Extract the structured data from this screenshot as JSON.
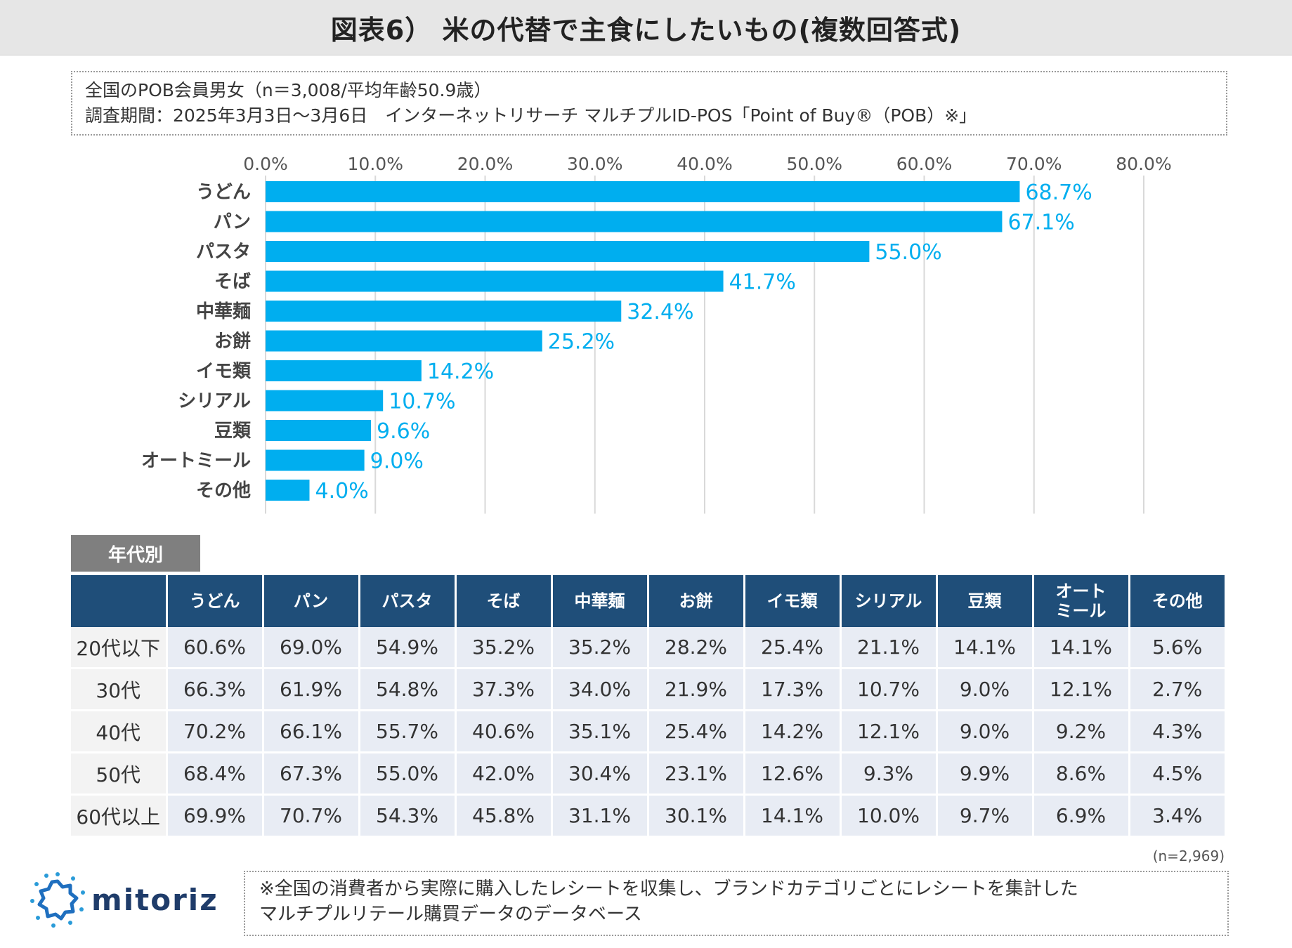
{
  "title": "図表6） 米の代替で主食にしたいもの(複数回答式)",
  "survey": {
    "line1": "全国のPOB会員男女（n＝3,008/平均年齢50.9歳）",
    "line2": "調査期間：2025年3月3日～3月6日　インターネットリサーチ マルチプルID-POS「Point of Buy®（POB）※」"
  },
  "colors": {
    "bar": "#00aeef",
    "label": "#00aeef",
    "header": "#1f4e79",
    "grid": "#d9d9d9"
  },
  "chart_data": {
    "type": "bar",
    "orientation": "horizontal",
    "title": "米の代替で主食にしたいもの(複数回答式)",
    "categories": [
      "うどん",
      "パン",
      "パスタ",
      "そば",
      "中華麺",
      "お餅",
      "イモ類",
      "シリアル",
      "豆類",
      "オートミール",
      "その他"
    ],
    "values": [
      68.7,
      67.1,
      55.0,
      41.7,
      32.4,
      25.2,
      14.2,
      10.7,
      9.6,
      9.0,
      4.0
    ],
    "data_labels": [
      "68.7%",
      "67.1%",
      "55.0%",
      "41.7%",
      "32.4%",
      "25.2%",
      "14.2%",
      "10.7%",
      "9.6%",
      "9.0%",
      "4.0%"
    ],
    "x_ticks": [
      0,
      10,
      20,
      30,
      40,
      50,
      60,
      70,
      80
    ],
    "x_tick_labels": [
      "0.0%",
      "10.0%",
      "20.0%",
      "30.0%",
      "40.0%",
      "50.0%",
      "60.0%",
      "70.0%",
      "80.0%"
    ],
    "xlim": [
      0,
      80
    ],
    "grid": true,
    "xlabel": "",
    "ylabel": ""
  },
  "age_table": {
    "tag": "年代別",
    "headers": [
      "",
      "うどん",
      "パン",
      "パスタ",
      "そば",
      "中華麺",
      "お餅",
      "イモ類",
      "シリアル",
      "豆類",
      "オート\nミール",
      "その他"
    ],
    "rows": [
      {
        "label": "20代以下",
        "values": [
          "60.6%",
          "69.0%",
          "54.9%",
          "35.2%",
          "35.2%",
          "28.2%",
          "25.4%",
          "21.1%",
          "14.1%",
          "14.1%",
          "5.6%"
        ]
      },
      {
        "label": "30代",
        "values": [
          "66.3%",
          "61.9%",
          "54.8%",
          "37.3%",
          "34.0%",
          "21.9%",
          "17.3%",
          "10.7%",
          "9.0%",
          "12.1%",
          "2.7%"
        ]
      },
      {
        "label": "40代",
        "values": [
          "70.2%",
          "66.1%",
          "55.7%",
          "40.6%",
          "35.1%",
          "25.4%",
          "14.2%",
          "12.1%",
          "9.0%",
          "9.2%",
          "4.3%"
        ]
      },
      {
        "label": "50代",
        "values": [
          "68.4%",
          "67.3%",
          "55.0%",
          "42.0%",
          "30.4%",
          "23.1%",
          "12.6%",
          "9.3%",
          "9.9%",
          "8.6%",
          "4.5%"
        ]
      },
      {
        "label": "60代以上",
        "values": [
          "69.9%",
          "70.7%",
          "54.3%",
          "45.8%",
          "31.1%",
          "30.1%",
          "14.1%",
          "10.0%",
          "9.7%",
          "6.9%",
          "3.4%"
        ]
      }
    ],
    "n_note": "(n=2,969)"
  },
  "logo": {
    "text": "mitoriz",
    "icon": "sun-ring-logo-icon"
  },
  "footnote": {
    "line1": "※全国の消費者から実際に購入したレシートを収集し、ブランドカテゴリごとにレシートを集計した",
    "line2": "マルチプルリテール購買データのデータベース"
  }
}
